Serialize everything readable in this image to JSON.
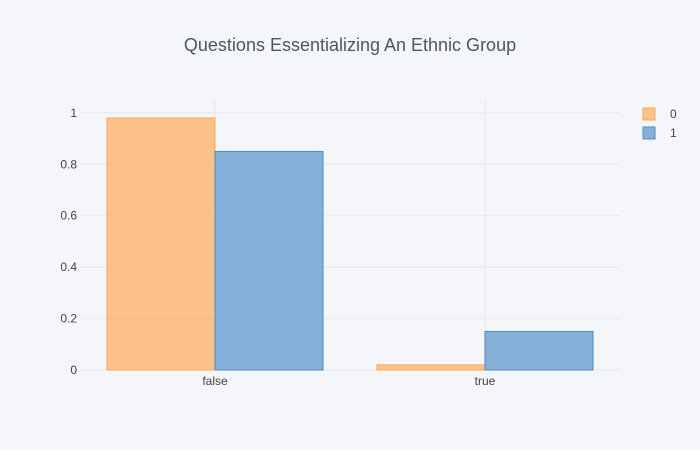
{
  "chart_data": {
    "type": "bar",
    "title": "Questions Essentializing An Ethnic Group",
    "xlabel": "",
    "ylabel": "",
    "categories": [
      "false",
      "true"
    ],
    "series": [
      {
        "name": "0",
        "values": [
          0.98,
          0.02
        ],
        "color": "#ffa64d"
      },
      {
        "name": "1",
        "values": [
          0.85,
          0.15
        ],
        "color": "#4b8bc8"
      }
    ],
    "ylim": [
      0,
      1.05
    ],
    "yticks": [
      0,
      0.2,
      0.4,
      0.6,
      0.8,
      1
    ],
    "ytick_labels": [
      "0",
      "0.2",
      "0.4",
      "0.6",
      "0.8",
      "1"
    ],
    "grid": true,
    "legend_position": "top-right"
  },
  "colors": {
    "background": "#f5f6f9",
    "grid": "#e4e7ee",
    "text": "#444444",
    "title": "#4d5663"
  }
}
